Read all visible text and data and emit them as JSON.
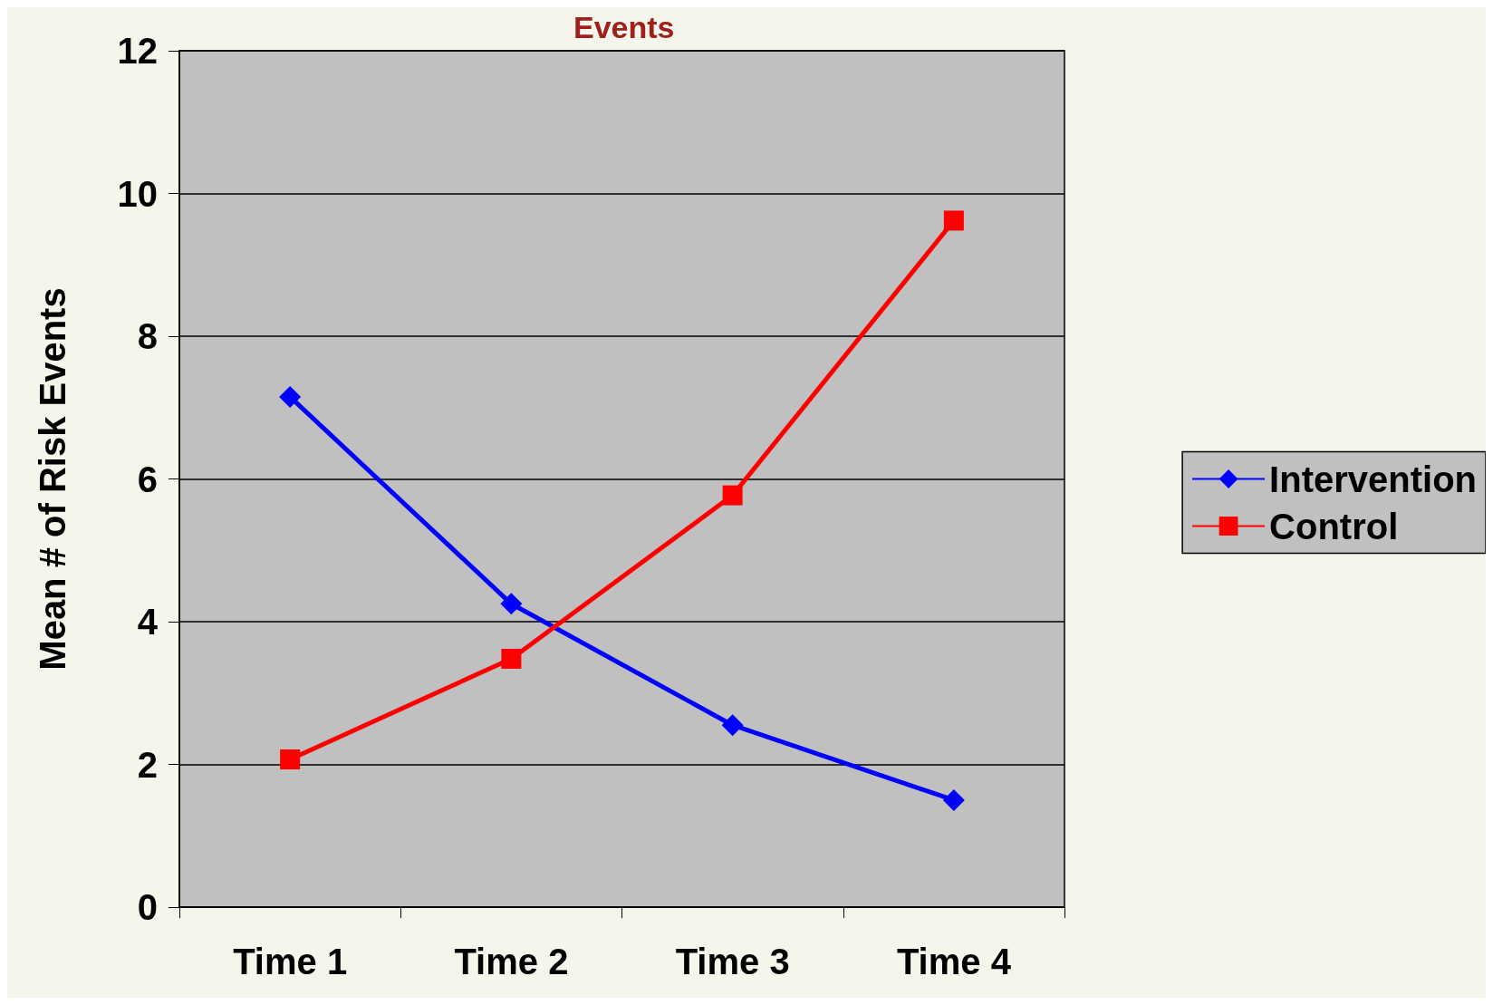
{
  "chart_data": {
    "type": "line",
    "title": "Events",
    "ylabel": "Mean # of Risk Events",
    "categories": [
      "Time 1",
      "Time 2",
      "Time 3",
      "Time 4"
    ],
    "series": [
      {
        "name": "Intervention",
        "color": "#0000ff",
        "marker": "diamond",
        "values": [
          7.15,
          4.25,
          2.55,
          1.5
        ]
      },
      {
        "name": "Control",
        "color": "#ff0000",
        "marker": "square",
        "values": [
          2.07,
          3.48,
          5.77,
          9.62
        ]
      }
    ],
    "ylim": [
      0,
      12
    ],
    "yticks": [
      0,
      2,
      4,
      6,
      8,
      10,
      12
    ],
    "grid": "y",
    "legend": "right",
    "line_style": "solid"
  }
}
